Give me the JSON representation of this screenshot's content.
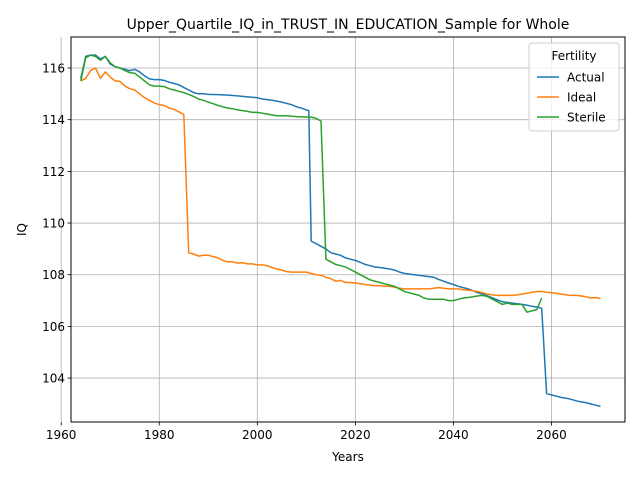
{
  "chart_data": {
    "type": "line",
    "title": "Upper_Quartile_IQ_in_TRUST_IN_EDUCATION_Sample for Whole",
    "xlabel": "Years",
    "ylabel": "IQ",
    "xlim": [
      1962,
      2075
    ],
    "ylim": [
      102.3,
      117.2
    ],
    "xticks": [
      1960,
      1980,
      2000,
      2020,
      2040,
      2060
    ],
    "yticks": [
      104,
      106,
      108,
      110,
      112,
      114,
      116
    ],
    "grid": true,
    "legend": {
      "title": "Fertility",
      "placement": "top-right"
    },
    "series": [
      {
        "name": "Actual",
        "color": "#1f77b4",
        "points": [
          [
            1964,
            115.6
          ],
          [
            1965,
            116.45
          ],
          [
            1966,
            116.5
          ],
          [
            1967,
            116.5
          ],
          [
            1968,
            116.35
          ],
          [
            1969,
            116.45
          ],
          [
            1970,
            116.15
          ],
          [
            1971,
            116.05
          ],
          [
            1972,
            116.0
          ],
          [
            1973,
            115.95
          ],
          [
            1974,
            115.9
          ],
          [
            1975,
            115.95
          ],
          [
            1976,
            115.85
          ],
          [
            1977,
            115.7
          ],
          [
            1978,
            115.58
          ],
          [
            1979,
            115.55
          ],
          [
            1980,
            115.55
          ],
          [
            1981,
            115.52
          ],
          [
            1982,
            115.45
          ],
          [
            1983,
            115.4
          ],
          [
            1984,
            115.35
          ],
          [
            1985,
            115.25
          ],
          [
            1986,
            115.15
          ],
          [
            1987,
            115.05
          ],
          [
            1988,
            115.0
          ],
          [
            1989,
            115.0
          ],
          [
            1990,
            114.98
          ],
          [
            1992,
            114.97
          ],
          [
            1994,
            114.95
          ],
          [
            1996,
            114.92
          ],
          [
            1998,
            114.88
          ],
          [
            2000,
            114.85
          ],
          [
            2001,
            114.8
          ],
          [
            2003,
            114.75
          ],
          [
            2005,
            114.68
          ],
          [
            2007,
            114.58
          ],
          [
            2008,
            114.5
          ],
          [
            2009,
            114.45
          ],
          [
            2010,
            114.38
          ],
          [
            2010.5,
            114.35
          ],
          [
            2011,
            109.3
          ],
          [
            2012,
            109.2
          ],
          [
            2013,
            109.1
          ],
          [
            2014,
            109.0
          ],
          [
            2015,
            108.85
          ],
          [
            2016,
            108.8
          ],
          [
            2017,
            108.75
          ],
          [
            2018,
            108.65
          ],
          [
            2019,
            108.6
          ],
          [
            2020,
            108.55
          ],
          [
            2021,
            108.48
          ],
          [
            2022,
            108.4
          ],
          [
            2023,
            108.35
          ],
          [
            2024,
            108.3
          ],
          [
            2025,
            108.28
          ],
          [
            2026,
            108.25
          ],
          [
            2027,
            108.22
          ],
          [
            2028,
            108.18
          ],
          [
            2029,
            108.1
          ],
          [
            2030,
            108.05
          ],
          [
            2032,
            108.0
          ],
          [
            2034,
            107.95
          ],
          [
            2036,
            107.9
          ],
          [
            2037,
            107.82
          ],
          [
            2038,
            107.75
          ],
          [
            2039,
            107.68
          ],
          [
            2040,
            107.62
          ],
          [
            2041,
            107.55
          ],
          [
            2042,
            107.5
          ],
          [
            2043,
            107.45
          ],
          [
            2044,
            107.38
          ],
          [
            2045,
            107.3
          ],
          [
            2046,
            107.25
          ],
          [
            2047,
            107.18
          ],
          [
            2048,
            107.1
          ],
          [
            2049,
            107.02
          ],
          [
            2050,
            106.95
          ],
          [
            2052,
            106.9
          ],
          [
            2054,
            106.85
          ],
          [
            2055,
            106.82
          ],
          [
            2056,
            106.78
          ],
          [
            2057,
            106.75
          ],
          [
            2058,
            106.7
          ],
          [
            2059,
            103.4
          ],
          [
            2060,
            103.35
          ],
          [
            2061,
            103.3
          ],
          [
            2062,
            103.25
          ],
          [
            2063,
            103.22
          ],
          [
            2064,
            103.18
          ],
          [
            2065,
            103.12
          ],
          [
            2066,
            103.08
          ],
          [
            2067,
            103.05
          ],
          [
            2068,
            103.0
          ],
          [
            2069,
            102.95
          ],
          [
            2070,
            102.9
          ]
        ]
      },
      {
        "name": "Ideal",
        "color": "#ff7f0e",
        "points": [
          [
            1964,
            115.5
          ],
          [
            1965,
            115.6
          ],
          [
            1966,
            115.9
          ],
          [
            1967,
            116.0
          ],
          [
            1968,
            115.6
          ],
          [
            1969,
            115.85
          ],
          [
            1970,
            115.65
          ],
          [
            1971,
            115.5
          ],
          [
            1972,
            115.48
          ],
          [
            1973,
            115.3
          ],
          [
            1974,
            115.2
          ],
          [
            1975,
            115.15
          ],
          [
            1976,
            115.0
          ],
          [
            1977,
            114.85
          ],
          [
            1978,
            114.75
          ],
          [
            1979,
            114.65
          ],
          [
            1980,
            114.58
          ],
          [
            1981,
            114.55
          ],
          [
            1982,
            114.45
          ],
          [
            1983,
            114.4
          ],
          [
            1984,
            114.3
          ],
          [
            1985,
            114.2
          ],
          [
            1986,
            108.85
          ],
          [
            1987,
            108.8
          ],
          [
            1988,
            108.72
          ],
          [
            1989,
            108.75
          ],
          [
            1990,
            108.75
          ],
          [
            1991,
            108.7
          ],
          [
            1992,
            108.65
          ],
          [
            1993,
            108.55
          ],
          [
            1994,
            108.5
          ],
          [
            1995,
            108.5
          ],
          [
            1996,
            108.45
          ],
          [
            1997,
            108.47
          ],
          [
            1998,
            108.42
          ],
          [
            1999,
            108.42
          ],
          [
            2000,
            108.38
          ],
          [
            2001,
            108.38
          ],
          [
            2002,
            108.35
          ],
          [
            2003,
            108.28
          ],
          [
            2004,
            108.22
          ],
          [
            2005,
            108.18
          ],
          [
            2006,
            108.12
          ],
          [
            2007,
            108.1
          ],
          [
            2008,
            108.1
          ],
          [
            2009,
            108.1
          ],
          [
            2010,
            108.1
          ],
          [
            2011,
            108.05
          ],
          [
            2012,
            108.0
          ],
          [
            2013,
            107.98
          ],
          [
            2014,
            107.9
          ],
          [
            2015,
            107.85
          ],
          [
            2016,
            107.75
          ],
          [
            2017,
            107.78
          ],
          [
            2018,
            107.7
          ],
          [
            2019,
            107.7
          ],
          [
            2020,
            107.68
          ],
          [
            2021,
            107.65
          ],
          [
            2022,
            107.62
          ],
          [
            2023,
            107.6
          ],
          [
            2024,
            107.58
          ],
          [
            2025,
            107.58
          ],
          [
            2026,
            107.55
          ],
          [
            2027,
            107.55
          ],
          [
            2028,
            107.52
          ],
          [
            2029,
            107.48
          ],
          [
            2030,
            107.45
          ],
          [
            2032,
            107.45
          ],
          [
            2034,
            107.45
          ],
          [
            2035,
            107.45
          ],
          [
            2036,
            107.48
          ],
          [
            2037,
            107.5
          ],
          [
            2038,
            107.48
          ],
          [
            2039,
            107.45
          ],
          [
            2040,
            107.45
          ],
          [
            2041,
            107.45
          ],
          [
            2042,
            107.42
          ],
          [
            2043,
            107.4
          ],
          [
            2044,
            107.38
          ],
          [
            2045,
            107.35
          ],
          [
            2046,
            107.3
          ],
          [
            2047,
            107.25
          ],
          [
            2048,
            107.22
          ],
          [
            2049,
            107.2
          ],
          [
            2050,
            107.2
          ],
          [
            2051,
            107.2
          ],
          [
            2052,
            107.2
          ],
          [
            2053,
            107.22
          ],
          [
            2054,
            107.25
          ],
          [
            2055,
            107.28
          ],
          [
            2056,
            107.32
          ],
          [
            2057,
            107.35
          ],
          [
            2058,
            107.35
          ],
          [
            2059,
            107.32
          ],
          [
            2060,
            107.3
          ],
          [
            2061,
            107.28
          ],
          [
            2062,
            107.25
          ],
          [
            2063,
            107.22
          ],
          [
            2064,
            107.2
          ],
          [
            2065,
            107.2
          ],
          [
            2066,
            107.18
          ],
          [
            2067,
            107.15
          ],
          [
            2068,
            107.1
          ],
          [
            2069,
            107.12
          ],
          [
            2070,
            107.08
          ]
        ]
      },
      {
        "name": "Sterile",
        "color": "#2ca02c",
        "points": [
          [
            1964,
            115.5
          ],
          [
            1965,
            116.4
          ],
          [
            1966,
            116.5
          ],
          [
            1967,
            116.45
          ],
          [
            1968,
            116.3
          ],
          [
            1969,
            116.45
          ],
          [
            1970,
            116.2
          ],
          [
            1971,
            116.05
          ],
          [
            1972,
            116.0
          ],
          [
            1973,
            115.9
          ],
          [
            1974,
            115.82
          ],
          [
            1975,
            115.8
          ],
          [
            1976,
            115.65
          ],
          [
            1977,
            115.5
          ],
          [
            1978,
            115.35
          ],
          [
            1979,
            115.3
          ],
          [
            1980,
            115.3
          ],
          [
            1981,
            115.28
          ],
          [
            1982,
            115.2
          ],
          [
            1983,
            115.15
          ],
          [
            1984,
            115.1
          ],
          [
            1985,
            115.05
          ],
          [
            1986,
            114.98
          ],
          [
            1987,
            114.9
          ],
          [
            1988,
            114.8
          ],
          [
            1989,
            114.75
          ],
          [
            1990,
            114.68
          ],
          [
            1991,
            114.62
          ],
          [
            1992,
            114.55
          ],
          [
            1993,
            114.5
          ],
          [
            1994,
            114.45
          ],
          [
            1995,
            114.42
          ],
          [
            1996,
            114.38
          ],
          [
            1997,
            114.35
          ],
          [
            1998,
            114.32
          ],
          [
            1999,
            114.28
          ],
          [
            2000,
            114.28
          ],
          [
            2001,
            114.25
          ],
          [
            2002,
            114.22
          ],
          [
            2003,
            114.18
          ],
          [
            2004,
            114.15
          ],
          [
            2006,
            114.15
          ],
          [
            2008,
            114.12
          ],
          [
            2010,
            114.1
          ],
          [
            2011,
            114.1
          ],
          [
            2012,
            114.05
          ],
          [
            2013,
            113.95
          ],
          [
            2014,
            108.6
          ],
          [
            2015,
            108.5
          ],
          [
            2016,
            108.4
          ],
          [
            2017,
            108.35
          ],
          [
            2018,
            108.3
          ],
          [
            2019,
            108.2
          ],
          [
            2020,
            108.1
          ],
          [
            2021,
            108.0
          ],
          [
            2022,
            107.9
          ],
          [
            2023,
            107.8
          ],
          [
            2024,
            107.75
          ],
          [
            2025,
            107.7
          ],
          [
            2026,
            107.65
          ],
          [
            2027,
            107.6
          ],
          [
            2028,
            107.55
          ],
          [
            2029,
            107.45
          ],
          [
            2030,
            107.35
          ],
          [
            2031,
            107.3
          ],
          [
            2032,
            107.25
          ],
          [
            2033,
            107.2
          ],
          [
            2034,
            107.1
          ],
          [
            2035,
            107.05
          ],
          [
            2036,
            107.05
          ],
          [
            2037,
            107.05
          ],
          [
            2038,
            107.05
          ],
          [
            2039,
            107.0
          ],
          [
            2040,
            107.0
          ],
          [
            2041,
            107.05
          ],
          [
            2042,
            107.1
          ],
          [
            2043,
            107.12
          ],
          [
            2044,
            107.15
          ],
          [
            2045,
            107.18
          ],
          [
            2046,
            107.2
          ],
          [
            2047,
            107.15
          ],
          [
            2048,
            107.05
          ],
          [
            2049,
            106.95
          ],
          [
            2050,
            106.85
          ],
          [
            2051,
            106.9
          ],
          [
            2052,
            106.85
          ],
          [
            2053,
            106.85
          ],
          [
            2054,
            106.85
          ],
          [
            2055,
            106.55
          ],
          [
            2056,
            106.6
          ],
          [
            2057,
            106.65
          ],
          [
            2058,
            107.1
          ]
        ]
      }
    ]
  }
}
